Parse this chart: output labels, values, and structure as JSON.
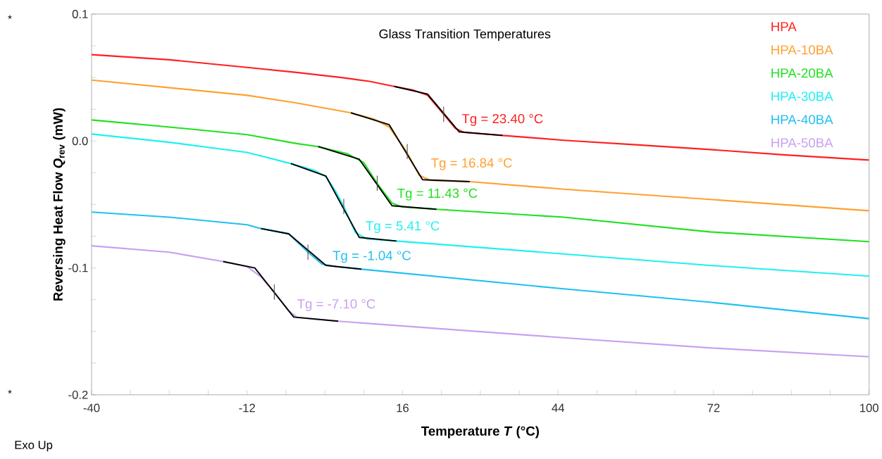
{
  "chart_data": {
    "type": "line",
    "title": "Glass Transition Temperatures",
    "xlabel": "Temperature *T* (°C)",
    "ylabel": "Reversing Heat Flow  *Q*$_{rev}$ (mW)",
    "xlim": [
      -40,
      100
    ],
    "ylim": [
      -0.2,
      0.1
    ],
    "xticks": [
      -40,
      {
        "value": -33,
        "label": null
      },
      {
        "value": -26,
        "label": null
      },
      {
        "value": -19,
        "label": null
      },
      -12,
      {
        "value": -5,
        "label": null
      },
      {
        "value": 2,
        "label": null
      },
      {
        "value": 9,
        "label": null
      },
      16,
      {
        "value": 23,
        "label": null
      },
      {
        "value": 30,
        "label": null
      },
      {
        "value": 37,
        "label": null
      },
      44,
      {
        "value": 51,
        "label": null
      },
      {
        "value": 58,
        "label": null
      },
      {
        "value": 65,
        "label": null
      },
      72,
      {
        "value": 79,
        "label": null
      },
      {
        "value": 86,
        "label": null
      },
      {
        "value": 93,
        "label": null
      },
      100
    ],
    "yticks": [
      {
        "value": -0.2,
        "label": "-0.2"
      },
      {
        "value": -0.175,
        "label": null
      },
      {
        "value": -0.15,
        "label": null
      },
      {
        "value": -0.125,
        "label": null
      },
      {
        "value": -0.1,
        "label": "-0.1"
      },
      {
        "value": -0.075,
        "label": null
      },
      {
        "value": -0.05,
        "label": null
      },
      {
        "value": -0.025,
        "label": null
      },
      {
        "value": 0.0,
        "label": "0.0"
      },
      {
        "value": 0.025,
        "label": null
      },
      {
        "value": 0.05,
        "label": null
      },
      {
        "value": 0.075,
        "label": null
      },
      {
        "value": 0.1,
        "label": "0.1"
      }
    ],
    "legend": "top right",
    "series": [
      {
        "name": "HPA",
        "color": "#ff2020",
        "x": [
          -40,
          -26,
          -12,
          -3.1,
          5,
          10,
          14.5,
          18,
          20.5,
          23.4,
          25.5,
          27,
          34,
          45,
          58,
          71.3,
          85,
          100
        ],
        "values": [
          0.068,
          0.064,
          0.058,
          0.054,
          0.05,
          0.047,
          0.043,
          0.04,
          0.036,
          0.021,
          0.01,
          0.0068,
          0.0044,
          0.0006,
          -0.003,
          -0.0067,
          -0.011,
          -0.015
        ]
      },
      {
        "name": "HPA-10BA",
        "color": "#ffa030",
        "x": [
          -40,
          -26,
          -12,
          -3.1,
          6.7,
          11,
          13.6,
          16.7,
          19,
          21,
          28.1,
          45,
          71.3,
          100
        ],
        "values": [
          0.048,
          0.042,
          0.036,
          0.03,
          0.0222,
          0.017,
          0.011,
          -0.0083,
          -0.027,
          -0.031,
          -0.032,
          -0.038,
          -0.046,
          -0.055
        ]
      },
      {
        "name": "HPA-20BA",
        "color": "#20e020",
        "x": [
          -40,
          -26,
          -12,
          -3.1,
          0.8,
          6,
          9,
          11.4,
          14.1,
          16,
          22.1,
          45,
          71.3,
          100
        ],
        "values": [
          0.0166,
          0.011,
          0.005,
          -0.002,
          -0.0044,
          -0.01,
          -0.017,
          -0.0333,
          -0.049,
          -0.052,
          -0.0538,
          -0.06,
          -0.0716,
          -0.0793
        ]
      },
      {
        "name": "HPA-30BA",
        "color": "#20f0f0",
        "x": [
          -40,
          -26,
          -12,
          -4.1,
          0,
          2.2,
          4,
          5.4,
          7.5,
          9.5,
          14.9,
          45,
          71.3,
          100
        ],
        "values": [
          0.0055,
          -0.001,
          -0.009,
          -0.0178,
          -0.023,
          -0.028,
          -0.04,
          -0.0516,
          -0.072,
          -0.077,
          -0.0788,
          -0.089,
          -0.098,
          -0.1065
        ]
      },
      {
        "name": "HPA-40BA",
        "color": "#20c0f0",
        "x": [
          -40,
          -26,
          -12,
          -9.5,
          -4.5,
          -1.04,
          1.5,
          4,
          8.6,
          45,
          71.3,
          100
        ],
        "values": [
          -0.056,
          -0.06,
          -0.066,
          -0.069,
          -0.073,
          -0.0876,
          -0.097,
          -0.099,
          -0.101,
          -0.1165,
          -0.127,
          -0.14
        ]
      },
      {
        "name": "HPA-50BA",
        "color": "#c8a0f0",
        "x": [
          -40,
          -26,
          -16.3,
          -12,
          -9.5,
          -7.1,
          -4.5,
          -3,
          4.4,
          45,
          71.3,
          100
        ],
        "values": [
          -0.0826,
          -0.0876,
          -0.095,
          -0.099,
          -0.107,
          -0.119,
          -0.134,
          -0.139,
          -0.142,
          -0.155,
          -0.163,
          -0.17
        ]
      },
      {
        "color": "#000000",
        "x": [
          14.5,
          20.5,
          26.2,
          34
        ],
        "values": [
          0.043,
          0.037,
          0.0072,
          0.0044
        ]
      },
      {
        "color": "#000000",
        "x": [
          6.7,
          13.6,
          19.6,
          28.1
        ],
        "values": [
          0.0222,
          0.0128,
          -0.0305,
          -0.032
        ]
      },
      {
        "color": "#000000",
        "x": [
          0.8,
          8.2,
          14.1,
          22.1
        ],
        "values": [
          -0.0044,
          -0.0144,
          -0.051,
          -0.0538
        ]
      },
      {
        "color": "#000000",
        "x": [
          -4.1,
          2.2,
          8.2,
          14.9
        ],
        "values": [
          -0.0178,
          -0.0277,
          -0.076,
          -0.0788
        ]
      },
      {
        "color": "#000000",
        "x": [
          -9.5,
          -4.5,
          2.2,
          8.6
        ],
        "values": [
          -0.069,
          -0.0732,
          -0.098,
          -0.101
        ]
      },
      {
        "color": "#000000",
        "x": [
          -16.3,
          -10.6,
          -3.6,
          4.4
        ],
        "values": [
          -0.095,
          -0.1,
          -0.1387,
          -0.142
        ]
      },
      {
        "color": "#4c4c4c",
        "x": [
          23.4,
          23.4
        ],
        "values": [
          0.015,
          0.027
        ]
      },
      {
        "color": "#4c4c4c",
        "x": [
          16.84,
          16.84
        ],
        "values": [
          -0.0143,
          -0.0023
        ]
      },
      {
        "color": "#4c4c4c",
        "x": [
          11.43,
          11.43
        ],
        "values": [
          -0.0393,
          -0.0273
        ]
      },
      {
        "color": "#4c4c4c",
        "x": [
          5.41,
          5.41
        ],
        "values": [
          -0.0576,
          -0.0456
        ]
      },
      {
        "color": "#4c4c4c",
        "x": [
          -1.04,
          -1.04
        ],
        "values": [
          -0.0936,
          -0.0816
        ]
      },
      {
        "color": "#4c4c4c",
        "x": [
          -7.1,
          -7.1
        ],
        "values": [
          -0.125,
          -0.113
        ]
      }
    ],
    "annotations": [
      {
        "text": "Tg = 23.40 °C",
        "x": 23.4,
        "y": 0.021
      },
      {
        "text": "Tg = 16.84 °C",
        "x": 16.84,
        "y": -0.0083
      },
      {
        "text": "Tg = 11.43 °C",
        "x": 11.43,
        "y": -0.0333
      },
      {
        "text": "Tg = 5.41 °C",
        "x": 5.41,
        "y": -0.0516
      },
      {
        "text": "Tg = -1.04 °C",
        "x": -1.04,
        "y": -0.0876
      },
      {
        "text": "Tg = -7.10 °C",
        "x": -7.1,
        "y": -0.119
      },
      "Exo Up",
      "*",
      "*"
    ]
  }
}
